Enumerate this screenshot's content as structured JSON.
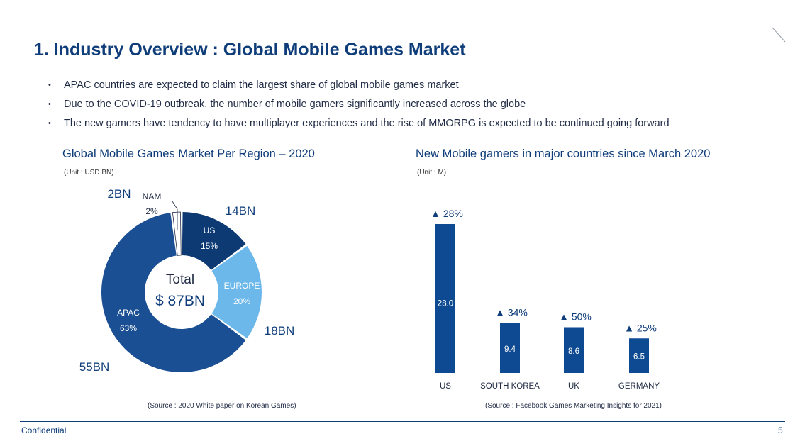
{
  "title": "1. Industry Overview : Global Mobile Games Market",
  "bullets": [
    "APAC countries are  expected to claim the largest share of global mobile games market",
    "Due to the COVID-19 outbreak, the number of mobile gamers significantly increased across the globe",
    "The new gamers have tendency to have multiplayer experiences and the rise of MMORPG is expected to be continued going forward"
  ],
  "bullet_glyph": "•",
  "left_section": {
    "title": "Global Mobile Games Market Per Region – 2020",
    "unit": "(Unit : USD BN)",
    "source": "(Source : 2020 White paper on Korean Games)",
    "center_label": "Total",
    "center_value": "$ 87BN"
  },
  "right_section": {
    "title": "New Mobile gamers in major countries since March 2020",
    "unit": "(Unit : M)",
    "source": "(Source : Facebook Games Marketing Insights for 2021)"
  },
  "chart_data": [
    {
      "type": "pie",
      "title": "Global Mobile Games Market Per Region – 2020",
      "slices": [
        {
          "label": "US",
          "percent": "15%",
          "value": 15,
          "amount": "14BN",
          "color": "#0d3a73"
        },
        {
          "label": "EUROPE",
          "percent": "20%",
          "value": 20,
          "amount": "18BN",
          "color": "#6cb8ea"
        },
        {
          "label": "APAC",
          "percent": "63%",
          "value": 63,
          "amount": "55BN",
          "color": "#1b4f93"
        },
        {
          "label": "NAM",
          "percent": "2%",
          "value": 2,
          "amount": "2BN",
          "color": "#ffffff"
        }
      ]
    },
    {
      "type": "bar",
      "title": "New Mobile gamers in major countries since March 2020",
      "categories": [
        "US",
        "SOUTH KOREA",
        "UK",
        "GERMANY"
      ],
      "values": [
        28.0,
        9.4,
        8.6,
        6.5
      ],
      "value_labels": [
        "28.0",
        "9.4",
        "8.6",
        "6.5"
      ],
      "growth": [
        "▲ 28%",
        "▲ 34%",
        "▲ 50%",
        "▲ 25%"
      ],
      "color": "#0e4a91"
    }
  ],
  "footer": {
    "left": "Confidential",
    "page": "5"
  }
}
